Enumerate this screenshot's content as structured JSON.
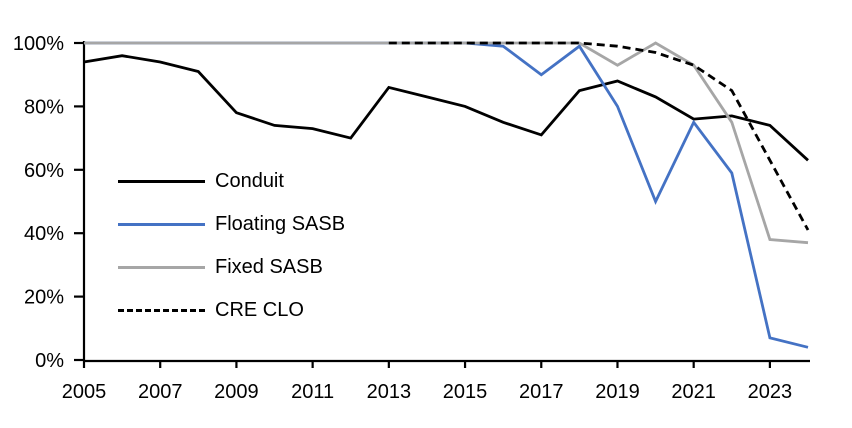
{
  "chart_data": {
    "type": "line",
    "title": "",
    "xlabel": "",
    "ylabel": "",
    "grid": false,
    "legend_position": "inside-left",
    "ylim": [
      0,
      100
    ],
    "x": [
      2005,
      2006,
      2007,
      2008,
      2009,
      2010,
      2011,
      2012,
      2013,
      2014,
      2015,
      2016,
      2017,
      2018,
      2019,
      2020,
      2021,
      2022,
      2023,
      2024
    ],
    "x_ticks": [
      2005,
      2007,
      2009,
      2011,
      2013,
      2015,
      2017,
      2019,
      2021,
      2023
    ],
    "y_ticks": [
      {
        "label": "0%",
        "value": 0
      },
      {
        "label": "20%",
        "value": 20
      },
      {
        "label": "40%",
        "value": 40
      },
      {
        "label": "60%",
        "value": 60
      },
      {
        "label": "80%",
        "value": 80
      },
      {
        "label": "100%",
        "value": 100
      }
    ],
    "series": [
      {
        "name": "Conduit",
        "color": "#000000",
        "style": "solid",
        "values": [
          94,
          96,
          94,
          91,
          78,
          74,
          73,
          70,
          86,
          83,
          80,
          75,
          71,
          85,
          88,
          83,
          76,
          77,
          74,
          63
        ]
      },
      {
        "name": "Floating SASB",
        "color": "#4472C4",
        "style": "solid",
        "values": [
          100,
          100,
          100,
          100,
          100,
          100,
          100,
          100,
          100,
          100,
          100,
          99,
          90,
          99,
          80,
          50,
          75,
          59,
          7,
          4
        ]
      },
      {
        "name": "Fixed SASB",
        "color": "#A6A6A6",
        "style": "solid",
        "values": [
          100,
          100,
          100,
          100,
          100,
          100,
          100,
          100,
          100,
          100,
          100,
          100,
          100,
          100,
          93,
          100,
          93,
          75,
          38,
          37
        ]
      },
      {
        "name": "CRE CLO",
        "color": "#000000",
        "style": "dashed",
        "values": [
          null,
          null,
          null,
          null,
          null,
          null,
          null,
          null,
          100,
          100,
          100,
          100,
          100,
          100,
          99,
          97,
          93,
          85,
          63,
          41
        ]
      }
    ],
    "colors": {
      "axis": "#000000",
      "background": "#FFFFFF",
      "accent_blue": "#4472C4",
      "accent_gray": "#A6A6A6"
    }
  }
}
